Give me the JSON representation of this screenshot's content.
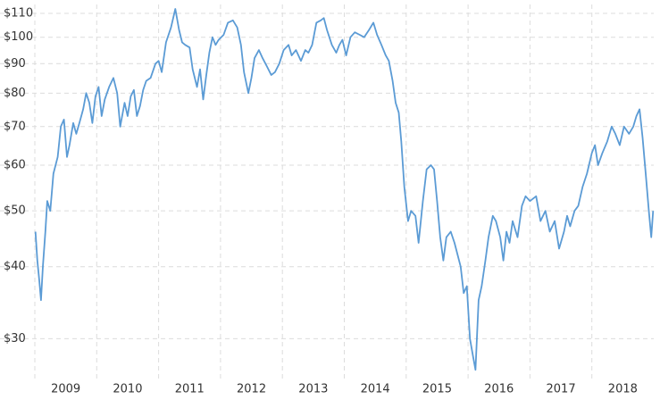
{
  "chart_data": {
    "type": "line",
    "log_y": true,
    "grid": true,
    "xlim": [
      2009,
      2019
    ],
    "xticks": [
      2009,
      2010,
      2011,
      2012,
      2013,
      2014,
      2015,
      2016,
      2017,
      2018
    ],
    "ylim": [
      25.5,
      114
    ],
    "yticks": [
      {
        "value": 30,
        "label": "$30"
      },
      {
        "value": 40,
        "label": "$40"
      },
      {
        "value": 50,
        "label": "$50"
      },
      {
        "value": 60,
        "label": "$60"
      },
      {
        "value": 70,
        "label": "$70"
      },
      {
        "value": 80,
        "label": "$80"
      },
      {
        "value": 90,
        "label": "$90"
      },
      {
        "value": 100,
        "label": "$100"
      },
      {
        "value": 110,
        "label": "$110"
      }
    ],
    "series": [
      {
        "color": "#5b9bd5",
        "x": [
          2009.01,
          2009.04,
          2009.07,
          2009.1,
          2009.13,
          2009.17,
          2009.2,
          2009.25,
          2009.3,
          2009.37,
          2009.42,
          2009.47,
          2009.52,
          2009.56,
          2009.62,
          2009.67,
          2009.72,
          2009.78,
          2009.83,
          2009.88,
          2009.93,
          2009.98,
          2010.03,
          2010.08,
          2010.13,
          2010.2,
          2010.27,
          2010.33,
          2010.38,
          2010.45,
          2010.5,
          2010.55,
          2010.6,
          2010.65,
          2010.7,
          2010.75,
          2010.8,
          2010.87,
          2010.95,
          2011.0,
          2011.05,
          2011.12,
          2011.2,
          2011.27,
          2011.33,
          2011.38,
          2011.43,
          2011.5,
          2011.55,
          2011.62,
          2011.67,
          2011.72,
          2011.77,
          2011.82,
          2011.87,
          2011.92,
          2011.97,
          2012.05,
          2012.12,
          2012.2,
          2012.27,
          2012.33,
          2012.38,
          2012.45,
          2012.5,
          2012.55,
          2012.62,
          2012.68,
          2012.75,
          2012.82,
          2012.88,
          2012.95,
          2013.02,
          2013.1,
          2013.15,
          2013.22,
          2013.3,
          2013.37,
          2013.42,
          2013.48,
          2013.55,
          2013.62,
          2013.67,
          2013.72,
          2013.8,
          2013.87,
          2013.92,
          2013.97,
          2014.03,
          2014.1,
          2014.17,
          2014.25,
          2014.32,
          2014.4,
          2014.47,
          2014.53,
          2014.6,
          2014.67,
          2014.72,
          2014.78,
          2014.83,
          2014.88,
          2014.92,
          2014.97,
          2015.03,
          2015.08,
          2015.15,
          2015.2,
          2015.27,
          2015.33,
          2015.4,
          2015.45,
          2015.5,
          2015.55,
          2015.6,
          2015.65,
          2015.72,
          2015.78,
          2015.83,
          2015.88,
          2015.93,
          2015.98,
          2016.03,
          2016.08,
          2016.12,
          2016.17,
          2016.22,
          2016.28,
          2016.33,
          2016.4,
          2016.45,
          2016.52,
          2016.57,
          2016.62,
          2016.67,
          2016.72,
          2016.8,
          2016.87,
          2016.93,
          2017.0,
          2017.1,
          2017.17,
          2017.25,
          2017.32,
          2017.4,
          2017.47,
          2017.55,
          2017.6,
          2017.65,
          2017.72,
          2017.78,
          2017.85,
          2017.92,
          2018.0,
          2018.05,
          2018.1,
          2018.17,
          2018.25,
          2018.32,
          2018.38,
          2018.45,
          2018.52,
          2018.6,
          2018.67,
          2018.72,
          2018.77,
          2018.82,
          2018.87,
          2018.92,
          2018.96,
          2018.99
        ],
        "values": [
          46,
          41,
          38,
          35,
          40,
          46,
          52,
          50,
          58,
          62,
          70,
          72,
          62,
          65,
          71,
          68,
          71,
          75,
          80,
          77,
          71,
          79,
          82,
          73,
          78,
          82,
          85,
          80,
          70,
          77,
          73,
          79,
          81,
          73,
          76,
          81,
          84,
          85,
          90,
          91,
          87,
          98,
          104,
          112,
          103,
          98,
          97,
          96,
          88,
          82,
          88,
          78,
          86,
          94,
          100,
          97,
          99,
          101,
          106,
          107,
          104,
          97,
          87,
          80,
          85,
          92,
          95,
          92,
          89,
          86,
          87,
          90,
          95,
          97,
          93,
          95,
          91,
          95,
          94,
          97,
          106,
          107,
          108,
          103,
          97,
          94,
          97,
          99,
          93,
          100,
          102,
          101,
          100,
          103,
          106,
          101,
          97,
          93,
          91,
          84,
          77,
          74,
          66,
          55,
          48,
          50,
          49,
          44,
          52,
          59,
          60,
          59,
          52,
          45,
          41,
          45,
          46,
          44,
          42,
          40,
          36,
          37,
          30,
          28,
          26.5,
          35,
          37,
          41,
          45,
          49,
          48,
          45,
          41,
          46,
          44,
          48,
          45,
          51,
          53,
          52,
          53,
          48,
          50,
          46,
          48,
          43,
          46,
          49,
          47,
          50,
          51,
          55,
          58,
          63,
          65,
          60,
          63,
          66,
          70,
          68,
          65,
          70,
          68,
          70,
          73,
          75,
          67,
          58,
          50,
          45,
          50
        ]
      }
    ]
  }
}
